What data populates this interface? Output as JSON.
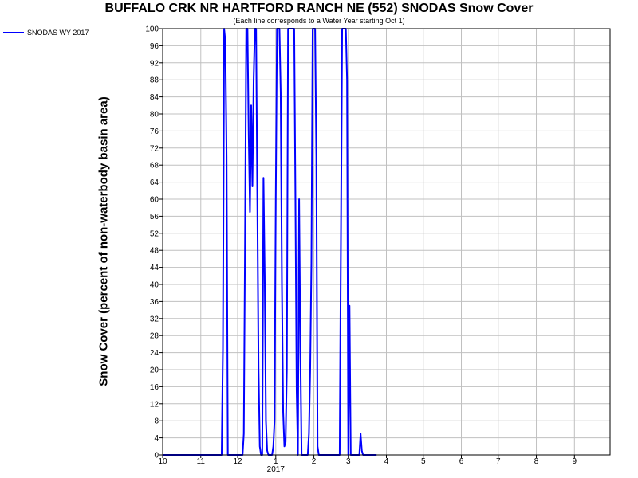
{
  "chart_data": {
    "type": "line",
    "title": "BUFFALO CRK NR HARTFORD RANCH NE (552) SNODAS Snow Cover",
    "subtitle": "(Each line corresponds to a Water Year starting Oct 1)",
    "ylabel": "Snow Cover (percent of non-waterbody basin area)",
    "xlabel": "",
    "ylim": [
      0,
      100
    ],
    "yticks": [
      0,
      4,
      8,
      12,
      16,
      20,
      24,
      28,
      32,
      36,
      40,
      44,
      48,
      52,
      56,
      60,
      64,
      68,
      72,
      76,
      80,
      84,
      88,
      92,
      96,
      100
    ],
    "xlim": [
      "2016-10-01",
      "2017-09-30"
    ],
    "xticks": [
      {
        "label": "10",
        "date": "2016-10-01"
      },
      {
        "label": "11",
        "date": "2016-11-01"
      },
      {
        "label": "12",
        "date": "2016-12-01"
      },
      {
        "label": "1",
        "date": "2017-01-01"
      },
      {
        "label": "2",
        "date": "2017-02-01"
      },
      {
        "label": "3",
        "date": "2017-03-01"
      },
      {
        "label": "4",
        "date": "2017-04-01"
      },
      {
        "label": "5",
        "date": "2017-05-01"
      },
      {
        "label": "6",
        "date": "2017-06-01"
      },
      {
        "label": "7",
        "date": "2017-07-01"
      },
      {
        "label": "8",
        "date": "2017-08-01"
      },
      {
        "label": "9",
        "date": "2017-09-01"
      }
    ],
    "year_label": "2017",
    "grid": true,
    "legend": "top-left",
    "series": [
      {
        "name": "SNODAS WY 2017",
        "color": "#0000ff",
        "points": [
          [
            "2016-10-01",
            0
          ],
          [
            "2016-11-18",
            0
          ],
          [
            "2016-11-19",
            25
          ],
          [
            "2016-11-20",
            100
          ],
          [
            "2016-11-21",
            97
          ],
          [
            "2016-11-22",
            70
          ],
          [
            "2016-11-23",
            0
          ],
          [
            "2016-12-05",
            0
          ],
          [
            "2016-12-06",
            5
          ],
          [
            "2016-12-07",
            50
          ],
          [
            "2016-12-08",
            100
          ],
          [
            "2016-12-09",
            100
          ],
          [
            "2016-12-10",
            75
          ],
          [
            "2016-12-11",
            57
          ],
          [
            "2016-12-12",
            82
          ],
          [
            "2016-12-13",
            63
          ],
          [
            "2016-12-14",
            88
          ],
          [
            "2016-12-15",
            100
          ],
          [
            "2016-12-16",
            100
          ],
          [
            "2016-12-17",
            60
          ],
          [
            "2016-12-18",
            20
          ],
          [
            "2016-12-19",
            2
          ],
          [
            "2016-12-20",
            0
          ],
          [
            "2016-12-21",
            0
          ],
          [
            "2016-12-22",
            65
          ],
          [
            "2016-12-23",
            42
          ],
          [
            "2016-12-24",
            8
          ],
          [
            "2016-12-25",
            1
          ],
          [
            "2016-12-26",
            0
          ],
          [
            "2016-12-27",
            0
          ],
          [
            "2016-12-28",
            0
          ],
          [
            "2016-12-29",
            0
          ],
          [
            "2016-12-30",
            2
          ],
          [
            "2016-12-31",
            8
          ],
          [
            "2017-01-01",
            60
          ],
          [
            "2017-01-02",
            100
          ],
          [
            "2017-01-03",
            100
          ],
          [
            "2017-01-04",
            100
          ],
          [
            "2017-01-05",
            85
          ],
          [
            "2017-01-06",
            40
          ],
          [
            "2017-01-07",
            10
          ],
          [
            "2017-01-08",
            2
          ],
          [
            "2017-01-09",
            3
          ],
          [
            "2017-01-10",
            20
          ],
          [
            "2017-01-11",
            100
          ],
          [
            "2017-01-12",
            100
          ],
          [
            "2017-01-13",
            100
          ],
          [
            "2017-01-14",
            100
          ],
          [
            "2017-01-15",
            100
          ],
          [
            "2017-01-16",
            100
          ],
          [
            "2017-01-17",
            60
          ],
          [
            "2017-01-18",
            15
          ],
          [
            "2017-01-19",
            0
          ],
          [
            "2017-01-20",
            60
          ],
          [
            "2017-01-21",
            25
          ],
          [
            "2017-01-22",
            0
          ],
          [
            "2017-01-23",
            0
          ],
          [
            "2017-01-24",
            0
          ],
          [
            "2017-01-25",
            0
          ],
          [
            "2017-01-26",
            0
          ],
          [
            "2017-01-27",
            0
          ],
          [
            "2017-01-28",
            5
          ],
          [
            "2017-01-29",
            20
          ],
          [
            "2017-01-30",
            45
          ],
          [
            "2017-01-31",
            100
          ],
          [
            "2017-02-01",
            100
          ],
          [
            "2017-02-02",
            100
          ],
          [
            "2017-02-03",
            70
          ],
          [
            "2017-02-04",
            2
          ],
          [
            "2017-02-05",
            0
          ],
          [
            "2017-02-22",
            0
          ],
          [
            "2017-02-23",
            50
          ],
          [
            "2017-02-24",
            100
          ],
          [
            "2017-02-25",
            100
          ],
          [
            "2017-02-26",
            100
          ],
          [
            "2017-02-27",
            100
          ],
          [
            "2017-02-28",
            88
          ],
          [
            "2017-03-01",
            0
          ],
          [
            "2017-03-02",
            35
          ],
          [
            "2017-03-03",
            0
          ],
          [
            "2017-03-10",
            0
          ],
          [
            "2017-03-11",
            5
          ],
          [
            "2017-03-12",
            1
          ],
          [
            "2017-03-13",
            0
          ],
          [
            "2017-03-24",
            0
          ]
        ]
      }
    ]
  }
}
